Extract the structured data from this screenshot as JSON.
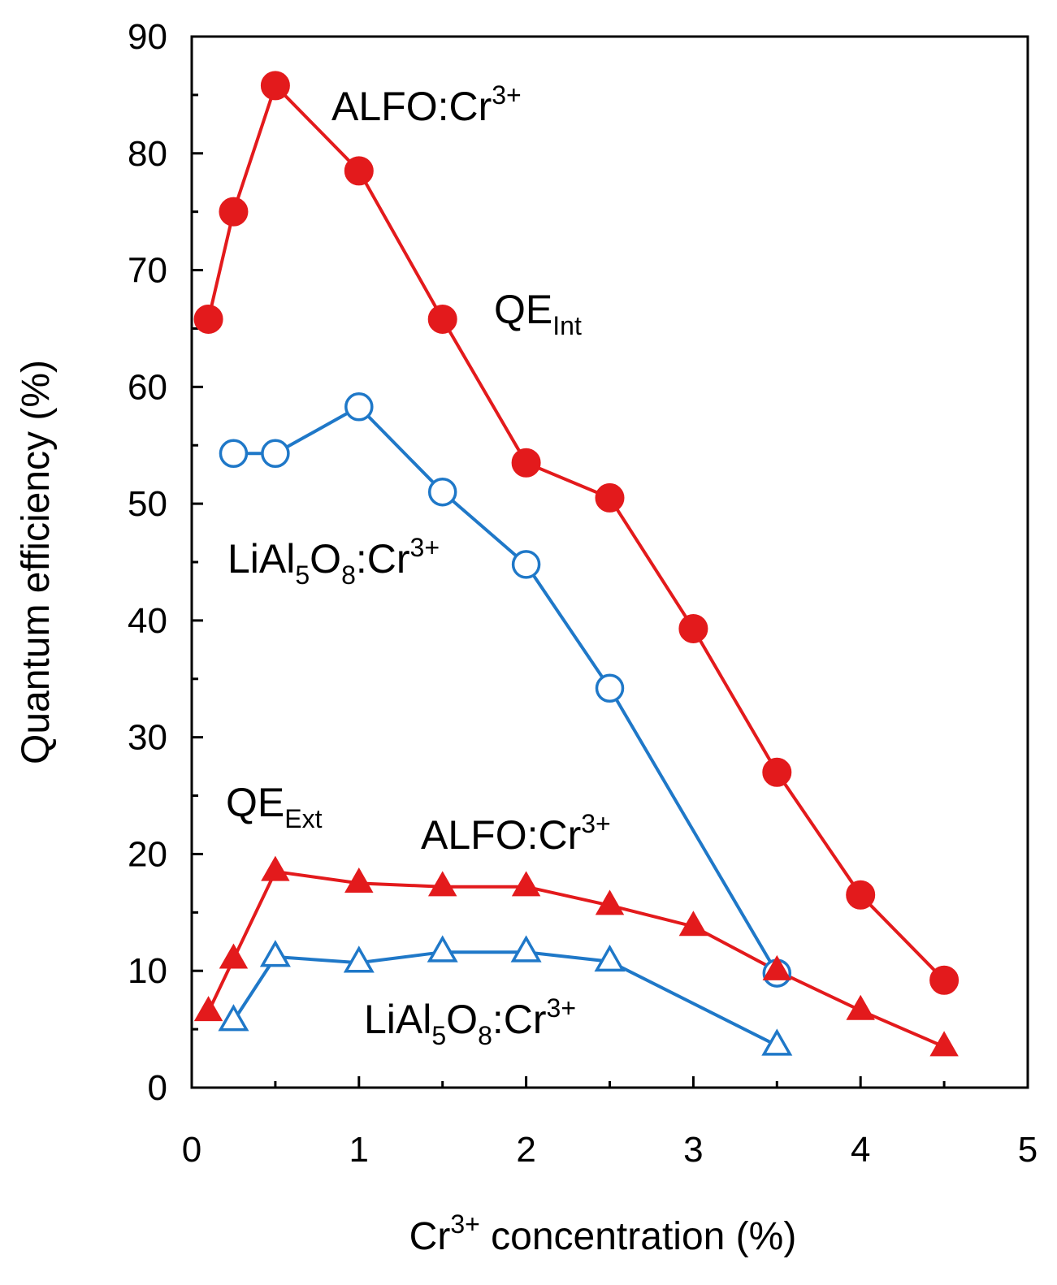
{
  "chart_data": {
    "type": "line",
    "xlabel": {
      "prefix": "Cr",
      "sup": "3+",
      "suffix": " concentration (%)"
    },
    "ylabel": "Quantum efficiency (%)",
    "xlim": [
      0,
      5
    ],
    "ylim": [
      0,
      90
    ],
    "xticks": [
      0,
      1,
      2,
      3,
      4,
      5
    ],
    "yticks": [
      0,
      10,
      20,
      30,
      40,
      50,
      60,
      70,
      80,
      90
    ],
    "grid": false,
    "legend": "none",
    "series": [
      {
        "id": "alfo-int",
        "color": "#e31a1c",
        "marker": "filled-circle",
        "points": [
          [
            0.1,
            65.8
          ],
          [
            0.25,
            75.0
          ],
          [
            0.5,
            85.8
          ],
          [
            1.0,
            78.5
          ],
          [
            1.5,
            65.8
          ],
          [
            2.0,
            53.5
          ],
          [
            2.5,
            50.5
          ],
          [
            3.0,
            39.3
          ],
          [
            3.5,
            27.0
          ],
          [
            4.0,
            16.5
          ],
          [
            4.5,
            9.2
          ]
        ]
      },
      {
        "id": "lialo-int",
        "color": "#1f78c8",
        "marker": "open-circle",
        "points": [
          [
            0.25,
            54.3
          ],
          [
            0.5,
            54.3
          ],
          [
            1.0,
            58.3
          ],
          [
            1.5,
            51.0
          ],
          [
            2.0,
            44.8
          ],
          [
            2.5,
            34.2
          ],
          [
            3.5,
            9.8
          ]
        ]
      },
      {
        "id": "alfo-ext",
        "color": "#e31a1c",
        "marker": "filled-triangle",
        "points": [
          [
            0.1,
            6.5
          ],
          [
            0.25,
            11.0
          ],
          [
            0.5,
            18.5
          ],
          [
            1.0,
            17.5
          ],
          [
            1.5,
            17.2
          ],
          [
            2.0,
            17.2
          ],
          [
            2.5,
            15.6
          ],
          [
            3.0,
            13.8
          ],
          [
            3.5,
            10.0
          ],
          [
            4.0,
            6.6
          ],
          [
            4.5,
            3.5
          ]
        ]
      },
      {
        "id": "lialo-ext",
        "color": "#1f78c8",
        "marker": "open-triangle",
        "points": [
          [
            0.25,
            5.7
          ],
          [
            0.5,
            11.2
          ],
          [
            1.0,
            10.7
          ],
          [
            1.5,
            11.6
          ],
          [
            2.0,
            11.6
          ],
          [
            2.5,
            10.8
          ],
          [
            3.5,
            3.6
          ]
        ]
      }
    ],
    "annotations": {
      "alfo_int": {
        "main": "ALFO:Cr",
        "sup": "3+"
      },
      "qe_int": {
        "main": "QE",
        "sub": "Int"
      },
      "lialo_int": {
        "main1": "LiAl",
        "sub1": "5",
        "main2": "O",
        "sub2": "8",
        "main3": ":Cr",
        "sup": "3+"
      },
      "qe_ext": {
        "main": "QE",
        "sub": "Ext"
      },
      "alfo_ext": {
        "main": "ALFO:Cr",
        "sup": "3+"
      },
      "lialo_ext": {
        "main1": "LiAl",
        "sub1": "5",
        "main2": "O",
        "sub2": "8",
        "main3": ":Cr",
        "sup": "3+"
      }
    }
  }
}
